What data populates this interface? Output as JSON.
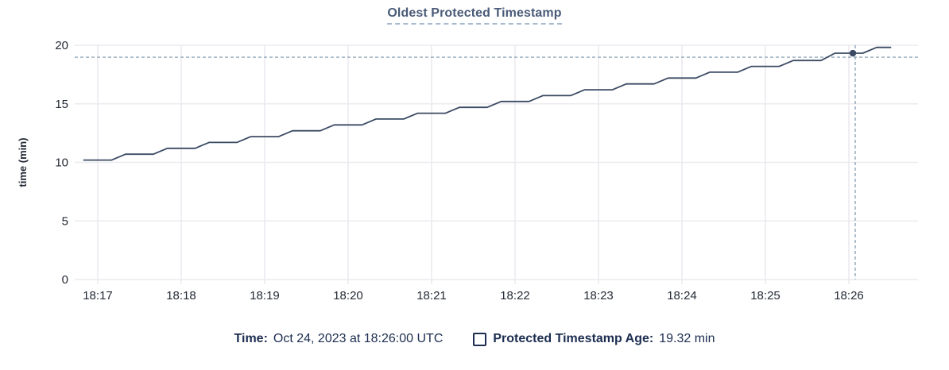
{
  "title": "Oldest Protected Timestamp",
  "legend": {
    "time_label": "Time:",
    "time_value": "Oct 24, 2023 at 18:26:00 UTC",
    "series_label": "Protected Timestamp Age:",
    "series_value": "19.32 min"
  },
  "colors": {
    "title": "#4a5b78",
    "title_underline": "#a8bacf",
    "legend_text": "#1c2d50",
    "series_line": "#3a4a63",
    "crosshair_dash": "#90a6b6",
    "gridline": "#eceaef",
    "tick_text": "#242a35"
  },
  "chart_data": {
    "type": "line",
    "title": "Oldest Protected Timestamp",
    "xlabel": "",
    "ylabel": "time (min)",
    "ylim": [
      0,
      20
    ],
    "y_ticks": [
      0,
      5,
      10,
      15,
      20
    ],
    "x_ticks": [
      {
        "t": 0,
        "label": "18:17"
      },
      {
        "t": 60,
        "label": "18:18"
      },
      {
        "t": 120,
        "label": "18:19"
      },
      {
        "t": 180,
        "label": "18:20"
      },
      {
        "t": 240,
        "label": "18:21"
      },
      {
        "t": 300,
        "label": "18:22"
      },
      {
        "t": 360,
        "label": "18:23"
      },
      {
        "t": 420,
        "label": "18:24"
      },
      {
        "t": 480,
        "label": "18:25"
      },
      {
        "t": 540,
        "label": "18:26"
      }
    ],
    "grid": true,
    "legend_position": "bottom",
    "series": [
      {
        "name": "Protected Timestamp Age",
        "unit": "min",
        "points": [
          [
            -10,
            10.2
          ],
          [
            0,
            10.2
          ],
          [
            10,
            10.2
          ],
          [
            20,
            10.7
          ],
          [
            30,
            10.7
          ],
          [
            40,
            10.7
          ],
          [
            50,
            11.2
          ],
          [
            60,
            11.2
          ],
          [
            70,
            11.2
          ],
          [
            80,
            11.7
          ],
          [
            90,
            11.7
          ],
          [
            100,
            11.7
          ],
          [
            110,
            12.2
          ],
          [
            120,
            12.2
          ],
          [
            130,
            12.2
          ],
          [
            140,
            12.7
          ],
          [
            150,
            12.7
          ],
          [
            160,
            12.7
          ],
          [
            170,
            13.2
          ],
          [
            180,
            13.2
          ],
          [
            190,
            13.2
          ],
          [
            200,
            13.7
          ],
          [
            210,
            13.7
          ],
          [
            220,
            13.7
          ],
          [
            230,
            14.2
          ],
          [
            240,
            14.2
          ],
          [
            250,
            14.2
          ],
          [
            260,
            14.7
          ],
          [
            270,
            14.7
          ],
          [
            280,
            14.7
          ],
          [
            290,
            15.2
          ],
          [
            300,
            15.2
          ],
          [
            310,
            15.2
          ],
          [
            320,
            15.7
          ],
          [
            330,
            15.7
          ],
          [
            340,
            15.7
          ],
          [
            350,
            16.2
          ],
          [
            360,
            16.2
          ],
          [
            370,
            16.2
          ],
          [
            380,
            16.7
          ],
          [
            390,
            16.7
          ],
          [
            400,
            16.7
          ],
          [
            410,
            17.2
          ],
          [
            420,
            17.2
          ],
          [
            430,
            17.2
          ],
          [
            440,
            17.7
          ],
          [
            450,
            17.7
          ],
          [
            460,
            17.7
          ],
          [
            470,
            18.2
          ],
          [
            480,
            18.2
          ],
          [
            490,
            18.2
          ],
          [
            500,
            18.7
          ],
          [
            510,
            18.7
          ],
          [
            520,
            18.7
          ],
          [
            530,
            19.32
          ],
          [
            540,
            19.32
          ],
          [
            550,
            19.32
          ],
          [
            560,
            19.82
          ],
          [
            570,
            19.82
          ]
        ]
      }
    ],
    "crosshair": {
      "time_label": "18:26:00",
      "value": 19.32,
      "t": 540
    }
  }
}
